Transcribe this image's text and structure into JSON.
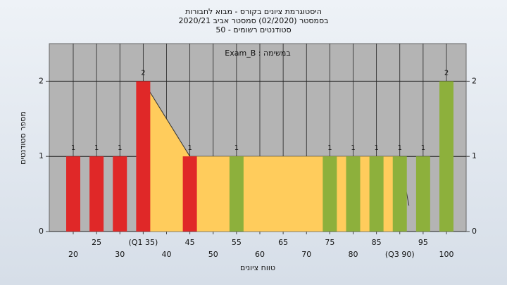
{
  "chart_data": {
    "type": "bar",
    "title": "היסטוגרמת ציונים בקורס - מבוא לחבורות",
    "subtitle": "בסמסטר  (02/2020)  סמסטר אביב 2020/21",
    "subtitle2": "סטודנטים רשומים - 50",
    "annotation": "Exam_B : במשימה",
    "x_label": "טווח ציונים",
    "y_label": "מספר סטודנטים",
    "categories": [
      "20",
      "25",
      "30",
      "(Q1 35)",
      "40",
      "45",
      "50",
      "55",
      "60",
      "65",
      "70",
      "75",
      "80",
      "85",
      "(Q3 90)",
      "95",
      "100"
    ],
    "values": [
      1,
      1,
      1,
      2,
      0,
      1,
      0,
      1,
      0,
      0,
      0,
      1,
      1,
      1,
      1,
      1,
      2
    ],
    "colors": [
      "#e02828",
      "#e02828",
      "#e02828",
      "#e02828",
      "#e02828",
      "#e02828",
      "#e02828",
      "#8db03c",
      "#8db03c",
      "#8db03c",
      "#8db03c",
      "#8db03c",
      "#8db03c",
      "#8db03c",
      "#8db03c",
      "#8db03c",
      "#8db03c"
    ],
    "ylim": [
      0,
      2.5
    ],
    "yticks": [
      0,
      1,
      2
    ],
    "y2lim": [
      0,
      2.5
    ],
    "y2ticks": [
      0,
      1,
      2
    ],
    "grid": true
  }
}
